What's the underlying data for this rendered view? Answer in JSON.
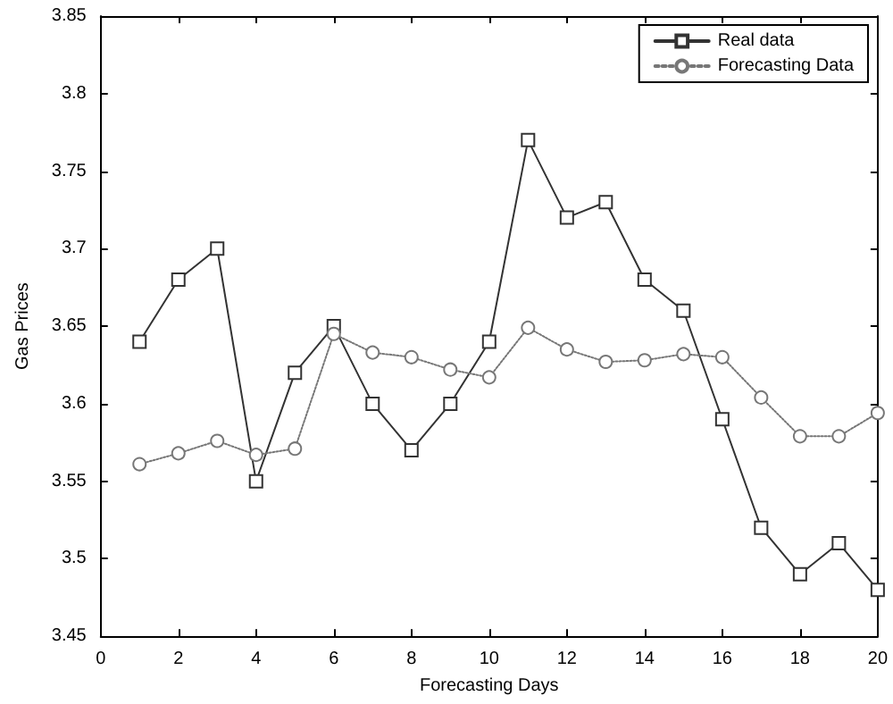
{
  "chart_data": {
    "type": "line",
    "xlabel": "Forecasting Days",
    "ylabel": "Gas Prices",
    "x": [
      1,
      2,
      3,
      4,
      5,
      6,
      7,
      8,
      9,
      10,
      11,
      12,
      13,
      14,
      15,
      16,
      17,
      18,
      19,
      20
    ],
    "series": [
      {
        "name": "Real data",
        "color": "#333333",
        "marker": "square",
        "line_style": "solid",
        "values": [
          3.64,
          3.68,
          3.7,
          3.55,
          3.62,
          3.65,
          3.6,
          3.57,
          3.6,
          3.64,
          3.77,
          3.72,
          3.73,
          3.68,
          3.66,
          3.59,
          3.52,
          3.49,
          3.51,
          3.48
        ]
      },
      {
        "name": "Forecasting Data",
        "color": "#777777",
        "marker": "circle",
        "line_style": "dotted",
        "values": [
          3.561,
          3.568,
          3.576,
          3.567,
          3.571,
          3.645,
          3.633,
          3.63,
          3.622,
          3.617,
          3.649,
          3.635,
          3.627,
          3.628,
          3.632,
          3.63,
          3.604,
          3.579,
          3.579,
          3.594
        ]
      }
    ],
    "xlim": [
      0,
      20
    ],
    "xticks": [
      0,
      2,
      4,
      6,
      8,
      10,
      12,
      14,
      16,
      18,
      20
    ],
    "ylim": [
      3.45,
      3.85
    ],
    "yticks": [
      3.45,
      3.5,
      3.55,
      3.6,
      3.65,
      3.7,
      3.75,
      3.8,
      3.85
    ],
    "grid": false,
    "legend": "top right"
  }
}
